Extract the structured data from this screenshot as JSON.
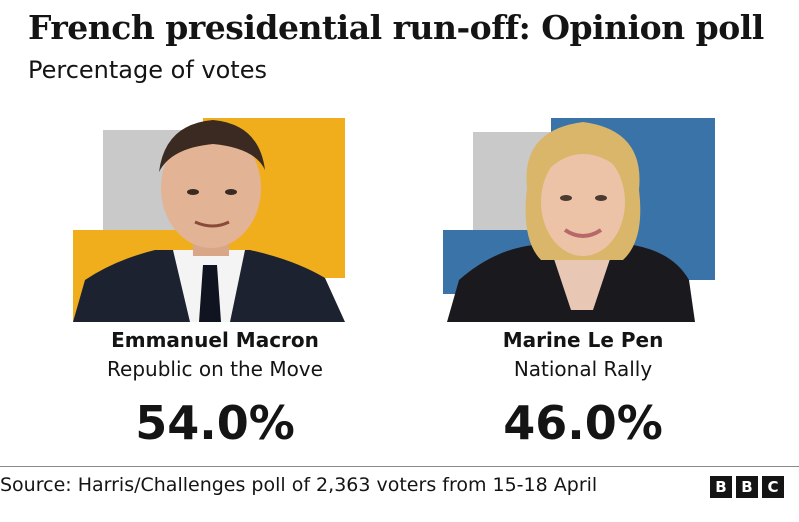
{
  "header": {
    "title": "French presidential run-off: Opinion poll",
    "subtitle": "Percentage of votes"
  },
  "chart_data": {
    "type": "bar",
    "title": "French presidential run-off: Opinion poll",
    "subtitle": "Percentage of votes",
    "categories": [
      "Emmanuel Macron",
      "Marine Le Pen"
    ],
    "values": [
      54.0,
      46.0
    ],
    "unit": "%",
    "candidates": [
      {
        "name": "Emmanuel Macron",
        "party": "Republic on the Move",
        "share": 54.0,
        "share_label": "54.0%",
        "color": "#f0ae1c"
      },
      {
        "name": "Marine Le Pen",
        "party": "National Rally",
        "share": 46.0,
        "share_label": "46.0%",
        "color": "#3a73a8"
      }
    ]
  },
  "footer": {
    "source": "Source: Harris/Challenges poll of 2,363 voters from 15-18 April",
    "logo_letters": [
      "B",
      "B",
      "C"
    ]
  },
  "colors": {
    "grey_block": "#c9c9c9",
    "macron_accent": "#f0ae1c",
    "lepen_accent": "#3a73a8",
    "dark_suit": "#1c2230",
    "skin": "#e2b394",
    "blonde": "#d9b66a"
  }
}
